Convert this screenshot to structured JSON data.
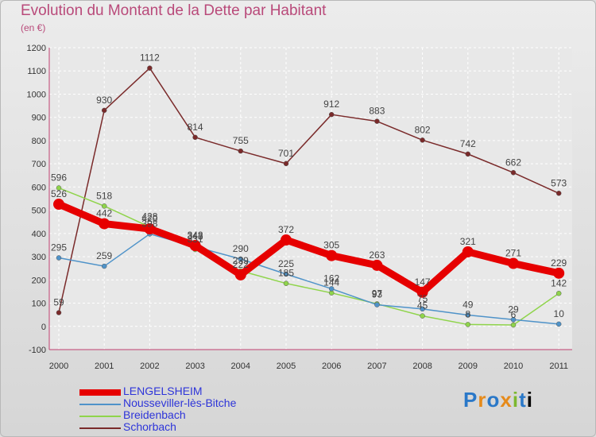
{
  "header": {
    "title": "Evolution du Montant de la Dette par Habitant",
    "subtitle": "(en €)"
  },
  "logo": {
    "letters": [
      "P",
      "r",
      "o",
      "x",
      "i",
      "t",
      "i"
    ]
  },
  "chart_data": {
    "type": "line",
    "x": [
      "2000",
      "2001",
      "2002",
      "2003",
      "2004",
      "2005",
      "2006",
      "2007",
      "2008",
      "2009",
      "2010",
      "2011"
    ],
    "ylim": [
      -100,
      1200
    ],
    "yticks": [
      "-100",
      "0",
      "100",
      "200",
      "300",
      "400",
      "500",
      "600",
      "700",
      "800",
      "900",
      "1000",
      "1100",
      "1200"
    ],
    "grid": true,
    "legend_position": "bottom-left",
    "series": [
      {
        "name": "LENGELSHEIM",
        "color": "#e60000",
        "values": [
          526,
          442,
          420,
          348,
          222,
          372,
          305,
          263,
          147,
          321,
          271,
          229
        ],
        "labels": [
          "526",
          "442",
          "420",
          "348",
          "222",
          "372",
          "305",
          "263",
          "147",
          "321",
          "271",
          "229"
        ]
      },
      {
        "name": "Nousseviller-lès-Bitche",
        "color": "#4f93c9",
        "values": [
          295,
          259,
          398,
          343,
          290,
          225,
          162,
          93,
          75,
          49,
          29,
          10
        ],
        "labels": [
          "295",
          "259",
          "398",
          "343",
          "290",
          "225",
          "162",
          "93",
          "75",
          "49",
          "29",
          "10"
        ]
      },
      {
        "name": "Breidenbach",
        "color": "#8fd44b",
        "values": [
          596,
          518,
          428,
          331,
          239,
          185,
          144,
          97,
          45,
          8,
          6,
          142
        ],
        "labels": [
          "596",
          "518",
          "428",
          "331",
          "239",
          "185",
          "144",
          "97",
          "45",
          "8",
          "6",
          "142"
        ]
      },
      {
        "name": "Schorbach",
        "color": "#7a2a2a",
        "values": [
          59,
          930,
          1112,
          814,
          755,
          701,
          912,
          883,
          802,
          742,
          662,
          573
        ],
        "labels": [
          "59",
          "930",
          "1112",
          "814",
          "755",
          "701",
          "912",
          "883",
          "802",
          "742",
          "662",
          "573"
        ]
      }
    ]
  }
}
